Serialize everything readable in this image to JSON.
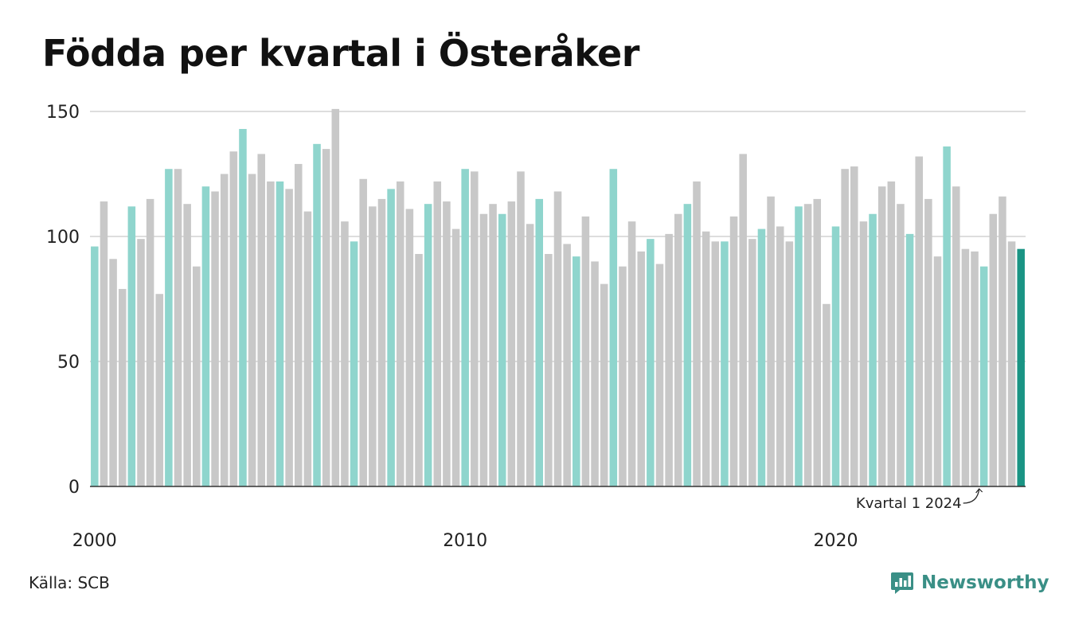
{
  "chart_data": {
    "type": "bar",
    "title": "Födda per kvartal i Österåker",
    "xlabel": "",
    "ylabel": "",
    "ylim": [
      0,
      150
    ],
    "y_ticks": [
      "0",
      "50",
      "100",
      "150"
    ],
    "x_ticks": [
      "2000",
      "2010",
      "2020"
    ],
    "x_tick_years": [
      2000,
      2010,
      2020
    ],
    "grid": true,
    "start_year": 2000,
    "highlight_rule": "first quarter of each year highlighted",
    "colors": {
      "q1": "#8fd5cd",
      "other": "#c8c8c8",
      "latest": "#1a9484",
      "grid": "#dddddd",
      "axis": "#333333"
    },
    "values": [
      96,
      114,
      91,
      79,
      112,
      99,
      115,
      77,
      127,
      127,
      113,
      88,
      120,
      118,
      125,
      134,
      143,
      125,
      133,
      122,
      122,
      119,
      129,
      110,
      137,
      135,
      151,
      106,
      98,
      123,
      112,
      115,
      119,
      122,
      111,
      93,
      113,
      122,
      114,
      103,
      127,
      126,
      109,
      113,
      109,
      114,
      126,
      105,
      115,
      93,
      118,
      97,
      92,
      108,
      90,
      81,
      127,
      88,
      106,
      94,
      99,
      89,
      101,
      109,
      113,
      122,
      102,
      98,
      98,
      108,
      133,
      99,
      103,
      116,
      104,
      98,
      112,
      113,
      115,
      73,
      104,
      127,
      128,
      106,
      109,
      120,
      122,
      113,
      101,
      132,
      115,
      92,
      136,
      120,
      95,
      94,
      88,
      109,
      116,
      98,
      95
    ],
    "annotation": {
      "label": "Kvartal 1 2024",
      "target_index": 96
    }
  },
  "footer": {
    "source": "Källa: SCB",
    "brand": "Newsworthy"
  },
  "icons": {
    "brand_logo": "chat-bubble-bar-chart-icon"
  }
}
